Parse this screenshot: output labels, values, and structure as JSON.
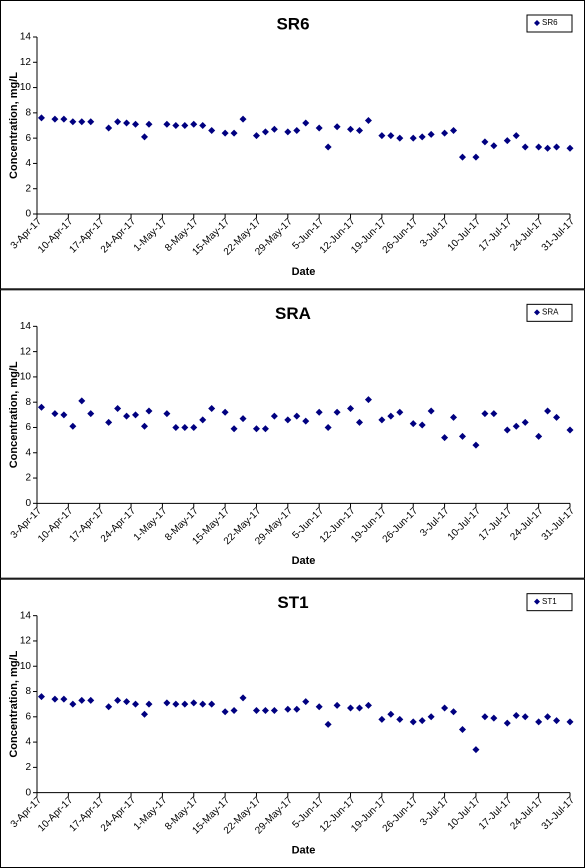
{
  "chart_data": [
    {
      "type": "scatter",
      "title": "SR6",
      "x_label": "Date",
      "y_label": "Concentration, mg/L",
      "x": [
        "2017-04-04",
        "2017-04-07",
        "2017-04-09",
        "2017-04-11",
        "2017-04-13",
        "2017-04-15",
        "2017-04-19",
        "2017-04-21",
        "2017-04-23",
        "2017-04-25",
        "2017-04-27",
        "2017-04-28",
        "2017-05-02",
        "2017-05-04",
        "2017-05-06",
        "2017-05-08",
        "2017-05-10",
        "2017-05-12",
        "2017-05-15",
        "2017-05-17",
        "2017-05-19",
        "2017-05-22",
        "2017-05-24",
        "2017-05-26",
        "2017-05-29",
        "2017-05-31",
        "2017-06-02",
        "2017-06-05",
        "2017-06-07",
        "2017-06-09",
        "2017-06-12",
        "2017-06-14",
        "2017-06-16",
        "2017-06-19",
        "2017-06-21",
        "2017-06-23",
        "2017-06-26",
        "2017-06-28",
        "2017-06-30",
        "2017-07-03",
        "2017-07-05",
        "2017-07-07",
        "2017-07-10",
        "2017-07-12",
        "2017-07-14",
        "2017-07-17",
        "2017-07-19",
        "2017-07-21",
        "2017-07-24",
        "2017-07-26",
        "2017-07-28",
        "2017-07-31"
      ],
      "series": [
        {
          "name": "SR6",
          "color": "#000080",
          "values": [
            7.6,
            7.5,
            7.5,
            7.3,
            7.3,
            7.3,
            6.8,
            7.3,
            7.2,
            7.1,
            6.1,
            7.1,
            7.1,
            7.0,
            7.0,
            7.1,
            7.0,
            6.6,
            6.4,
            6.4,
            7.5,
            6.2,
            6.5,
            6.7,
            6.5,
            6.6,
            7.2,
            6.8,
            5.3,
            6.9,
            6.7,
            6.6,
            7.4,
            6.2,
            6.2,
            6.0,
            6.0,
            6.1,
            6.3,
            6.4,
            6.6,
            4.5,
            4.5,
            5.7,
            5.4,
            5.8,
            6.2,
            5.3,
            5.3,
            5.2,
            5.3,
            5.2
          ]
        }
      ],
      "xlim": [
        "2017-04-03",
        "2017-07-31"
      ],
      "xticks": [
        {
          "value": "2017-04-03",
          "label": "3-Apr-17"
        },
        {
          "value": "2017-04-10",
          "label": "10-Apr-17"
        },
        {
          "value": "2017-04-17",
          "label": "17-Apr-17"
        },
        {
          "value": "2017-04-24",
          "label": "24-Apr-17"
        },
        {
          "value": "2017-05-01",
          "label": "1-May-17"
        },
        {
          "value": "2017-05-08",
          "label": "8-May-17"
        },
        {
          "value": "2017-05-15",
          "label": "15-May-17"
        },
        {
          "value": "2017-05-22",
          "label": "22-May-17"
        },
        {
          "value": "2017-05-29",
          "label": "29-May-17"
        },
        {
          "value": "2017-06-05",
          "label": "5-Jun-17"
        },
        {
          "value": "2017-06-12",
          "label": "12-Jun-17"
        },
        {
          "value": "2017-06-19",
          "label": "19-Jun-17"
        },
        {
          "value": "2017-06-26",
          "label": "26-Jun-17"
        },
        {
          "value": "2017-07-03",
          "label": "3-Jul-17"
        },
        {
          "value": "2017-07-10",
          "label": "10-Jul-17"
        },
        {
          "value": "2017-07-17",
          "label": "17-Jul-17"
        },
        {
          "value": "2017-07-24",
          "label": "24-Jul-17"
        },
        {
          "value": "2017-07-31",
          "label": "31-Jul-17"
        }
      ],
      "ylim": [
        0,
        14
      ],
      "yticks": [
        0,
        2,
        4,
        6,
        8,
        10,
        12,
        14
      ],
      "legend": "upper right"
    },
    {
      "type": "scatter",
      "title": "SRA",
      "x_label": "Date",
      "y_label": "Concentration, mg/L",
      "x": [
        "2017-04-04",
        "2017-04-07",
        "2017-04-09",
        "2017-04-11",
        "2017-04-13",
        "2017-04-15",
        "2017-04-19",
        "2017-04-21",
        "2017-04-23",
        "2017-04-25",
        "2017-04-27",
        "2017-04-28",
        "2017-05-02",
        "2017-05-04",
        "2017-05-06",
        "2017-05-08",
        "2017-05-10",
        "2017-05-12",
        "2017-05-15",
        "2017-05-17",
        "2017-05-19",
        "2017-05-22",
        "2017-05-24",
        "2017-05-26",
        "2017-05-29",
        "2017-05-31",
        "2017-06-02",
        "2017-06-05",
        "2017-06-07",
        "2017-06-09",
        "2017-06-12",
        "2017-06-14",
        "2017-06-16",
        "2017-06-19",
        "2017-06-21",
        "2017-06-23",
        "2017-06-26",
        "2017-06-28",
        "2017-06-30",
        "2017-07-03",
        "2017-07-05",
        "2017-07-07",
        "2017-07-10",
        "2017-07-12",
        "2017-07-14",
        "2017-07-17",
        "2017-07-19",
        "2017-07-21",
        "2017-07-24",
        "2017-07-26",
        "2017-07-28",
        "2017-07-31"
      ],
      "series": [
        {
          "name": "SRA",
          "color": "#000080",
          "values": [
            7.6,
            7.1,
            7.0,
            6.1,
            8.1,
            7.1,
            6.4,
            7.5,
            6.9,
            7.0,
            6.1,
            7.3,
            7.1,
            6.0,
            6.0,
            6.0,
            6.6,
            7.5,
            7.2,
            5.9,
            6.7,
            5.9,
            5.9,
            6.9,
            6.6,
            6.9,
            6.5,
            7.2,
            6.0,
            7.2,
            7.5,
            6.4,
            8.2,
            6.6,
            6.9,
            7.2,
            6.3,
            6.2,
            7.3,
            5.2,
            6.8,
            5.3,
            4.6,
            7.1,
            7.1,
            5.8,
            6.1,
            6.4,
            5.3,
            7.3,
            6.8,
            5.8
          ]
        }
      ],
      "xlim": [
        "2017-04-03",
        "2017-07-31"
      ],
      "xticks": [
        {
          "value": "2017-04-03",
          "label": "3-Apr-17"
        },
        {
          "value": "2017-04-10",
          "label": "10-Apr-17"
        },
        {
          "value": "2017-04-17",
          "label": "17-Apr-17"
        },
        {
          "value": "2017-04-24",
          "label": "24-Apr-17"
        },
        {
          "value": "2017-05-01",
          "label": "1-May-17"
        },
        {
          "value": "2017-05-08",
          "label": "8-May-17"
        },
        {
          "value": "2017-05-15",
          "label": "15-May-17"
        },
        {
          "value": "2017-05-22",
          "label": "22-May-17"
        },
        {
          "value": "2017-05-29",
          "label": "29-May-17"
        },
        {
          "value": "2017-06-05",
          "label": "5-Jun-17"
        },
        {
          "value": "2017-06-12",
          "label": "12-Jun-17"
        },
        {
          "value": "2017-06-19",
          "label": "19-Jun-17"
        },
        {
          "value": "2017-06-26",
          "label": "26-Jun-17"
        },
        {
          "value": "2017-07-03",
          "label": "3-Jul-17"
        },
        {
          "value": "2017-07-10",
          "label": "10-Jul-17"
        },
        {
          "value": "2017-07-17",
          "label": "17-Jul-17"
        },
        {
          "value": "2017-07-24",
          "label": "24-Jul-17"
        },
        {
          "value": "2017-07-31",
          "label": "31-Jul-17"
        }
      ],
      "ylim": [
        0,
        14
      ],
      "yticks": [
        0,
        2,
        4,
        6,
        8,
        10,
        12,
        14
      ],
      "legend": "upper right"
    },
    {
      "type": "scatter",
      "title": "ST1",
      "x_label": "Date",
      "y_label": "Concentration, mg/L",
      "x": [
        "2017-04-04",
        "2017-04-07",
        "2017-04-09",
        "2017-04-11",
        "2017-04-13",
        "2017-04-15",
        "2017-04-19",
        "2017-04-21",
        "2017-04-23",
        "2017-04-25",
        "2017-04-27",
        "2017-04-28",
        "2017-05-02",
        "2017-05-04",
        "2017-05-06",
        "2017-05-08",
        "2017-05-10",
        "2017-05-12",
        "2017-05-15",
        "2017-05-17",
        "2017-05-19",
        "2017-05-22",
        "2017-05-24",
        "2017-05-26",
        "2017-05-29",
        "2017-05-31",
        "2017-06-02",
        "2017-06-05",
        "2017-06-07",
        "2017-06-09",
        "2017-06-12",
        "2017-06-14",
        "2017-06-16",
        "2017-06-19",
        "2017-06-21",
        "2017-06-23",
        "2017-06-26",
        "2017-06-28",
        "2017-06-30",
        "2017-07-03",
        "2017-07-05",
        "2017-07-07",
        "2017-07-10",
        "2017-07-12",
        "2017-07-14",
        "2017-07-17",
        "2017-07-19",
        "2017-07-21",
        "2017-07-24",
        "2017-07-26",
        "2017-07-28",
        "2017-07-31"
      ],
      "series": [
        {
          "name": "ST1",
          "color": "#000080",
          "values": [
            7.6,
            7.4,
            7.4,
            7.0,
            7.3,
            7.3,
            6.8,
            7.3,
            7.2,
            7.0,
            6.2,
            7.0,
            7.1,
            7.0,
            7.0,
            7.1,
            7.0,
            7.0,
            6.4,
            6.5,
            7.5,
            6.5,
            6.5,
            6.5,
            6.6,
            6.6,
            7.2,
            6.8,
            5.4,
            6.9,
            6.7,
            6.7,
            6.9,
            5.8,
            6.2,
            5.8,
            5.6,
            5.7,
            6.0,
            6.7,
            6.4,
            5.0,
            3.4,
            6.0,
            5.9,
            5.5,
            6.1,
            6.0,
            5.6,
            6.0,
            5.7,
            5.6
          ]
        }
      ],
      "xlim": [
        "2017-04-03",
        "2017-07-31"
      ],
      "xticks": [
        {
          "value": "2017-04-03",
          "label": "3-Apr-17"
        },
        {
          "value": "2017-04-10",
          "label": "10-Apr-17"
        },
        {
          "value": "2017-04-17",
          "label": "17-Apr-17"
        },
        {
          "value": "2017-04-24",
          "label": "24-Apr-17"
        },
        {
          "value": "2017-05-01",
          "label": "1-May-17"
        },
        {
          "value": "2017-05-08",
          "label": "8-May-17"
        },
        {
          "value": "2017-05-15",
          "label": "15-May-17"
        },
        {
          "value": "2017-05-22",
          "label": "22-May-17"
        },
        {
          "value": "2017-05-29",
          "label": "29-May-17"
        },
        {
          "value": "2017-06-05",
          "label": "5-Jun-17"
        },
        {
          "value": "2017-06-12",
          "label": "12-Jun-17"
        },
        {
          "value": "2017-06-19",
          "label": "19-Jun-17"
        },
        {
          "value": "2017-06-26",
          "label": "26-Jun-17"
        },
        {
          "value": "2017-07-03",
          "label": "3-Jul-17"
        },
        {
          "value": "2017-07-10",
          "label": "10-Jul-17"
        },
        {
          "value": "2017-07-17",
          "label": "17-Jul-17"
        },
        {
          "value": "2017-07-24",
          "label": "24-Jul-17"
        },
        {
          "value": "2017-07-31",
          "label": "31-Jul-17"
        }
      ],
      "ylim": [
        0,
        14
      ],
      "yticks": [
        0,
        2,
        4,
        6,
        8,
        10,
        12,
        14
      ],
      "legend": "upper right"
    }
  ]
}
